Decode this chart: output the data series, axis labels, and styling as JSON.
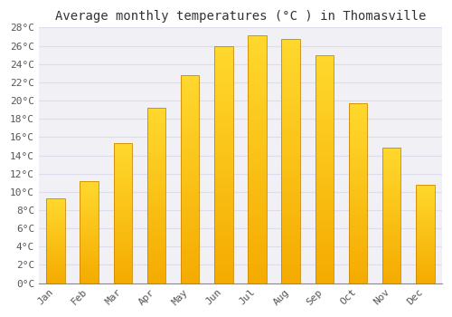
{
  "title": "Average monthly temperatures (°C ) in Thomasville",
  "months": [
    "Jan",
    "Feb",
    "Mar",
    "Apr",
    "May",
    "Jun",
    "Jul",
    "Aug",
    "Sep",
    "Oct",
    "Nov",
    "Dec"
  ],
  "values": [
    9.3,
    11.2,
    15.3,
    19.2,
    22.8,
    26.0,
    27.2,
    26.8,
    25.0,
    19.7,
    14.8,
    10.8
  ],
  "bar_color_bottom": "#F5A800",
  "bar_color_top": "#FFD966",
  "bar_edge_color": "#CC8800",
  "background_color": "#FFFFFF",
  "plot_bg_color": "#F0F0F5",
  "grid_color": "#DDDDEE",
  "ylim": [
    0,
    28
  ],
  "ytick_step": 2,
  "title_fontsize": 10,
  "tick_fontsize": 8,
  "font_family": "monospace",
  "bar_width": 0.55
}
